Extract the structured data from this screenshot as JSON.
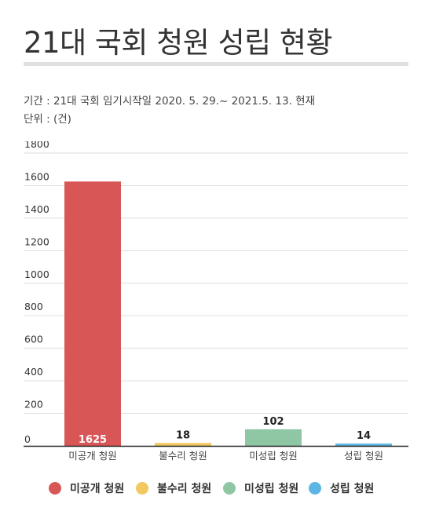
{
  "title": "21대 국회 청원 성립 현황",
  "meta": {
    "period": "기간 : 21대 국회 임기시작일 2020. 5. 29.~ 2021.5. 13. 현재",
    "unit": "단위 : (건)"
  },
  "colors": {
    "grid": "#dddddd",
    "axis": "#222222",
    "rule": "#e0e0e0"
  },
  "chart_data": {
    "type": "bar",
    "title": "21대 국회 청원 성립 현황",
    "xlabel": "",
    "ylabel": "",
    "ylim": [
      0,
      1800
    ],
    "yticks": [
      0,
      200,
      400,
      600,
      800,
      1000,
      1200,
      1400,
      1600,
      1800
    ],
    "grid": true,
    "legend_position": "bottom",
    "categories": [
      "미공개 청원",
      "불수리 청원",
      "미성립 청원",
      "성립 청원"
    ],
    "values": [
      1625,
      18,
      102,
      14
    ],
    "colors": [
      "#d95657",
      "#f2c860",
      "#8fc6a4",
      "#5cb5e2"
    ],
    "data_labels": [
      "1625",
      "18",
      "102",
      "14"
    ]
  },
  "legend": [
    {
      "label": "미공개 청원",
      "color": "#d95657"
    },
    {
      "label": "불수리 청원",
      "color": "#f2c860"
    },
    {
      "label": "미성립 청원",
      "color": "#8fc6a4"
    },
    {
      "label": "성립 청원",
      "color": "#5cb5e2"
    }
  ]
}
